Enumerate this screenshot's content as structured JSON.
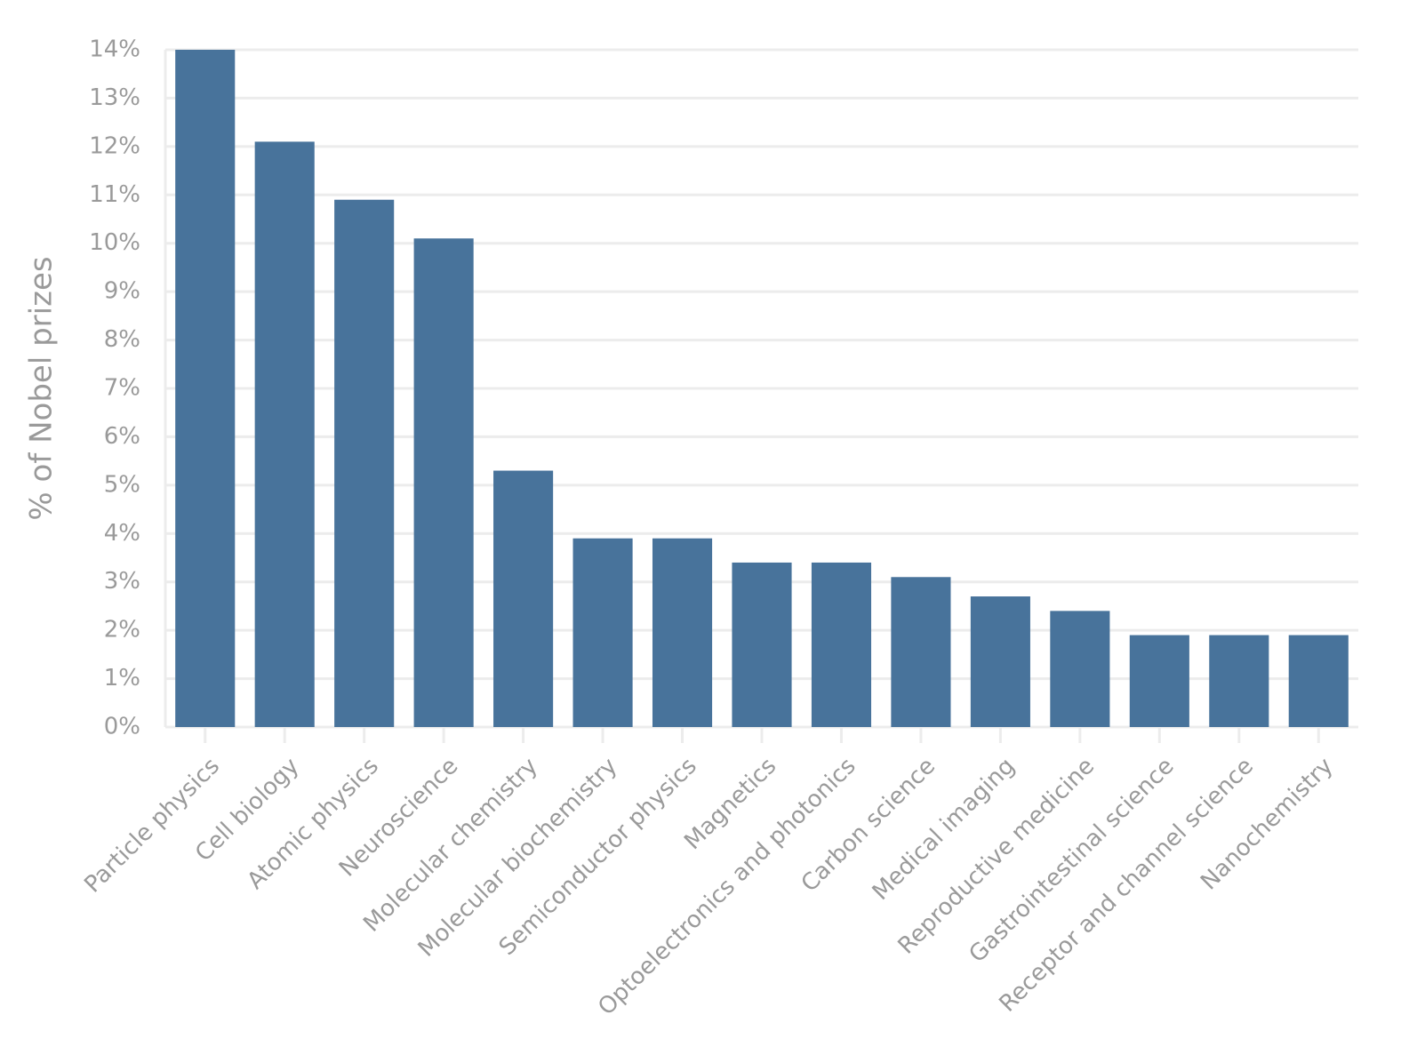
{
  "chart_data": {
    "type": "bar",
    "y_label": "% of Nobel prizes",
    "categories": [
      "Particle physics",
      "Cell biology",
      "Atomic physics",
      "Neuroscience",
      "Molecular chemistry",
      "Molecular biochemistry",
      "Semiconductor physics",
      "Magnetics",
      "Optoelectronics and photonics",
      "Carbon science",
      "Medical imaging",
      "Reproductive medicine",
      "Gastrointestinal science",
      "Receptor and channel science",
      "Nanochemistry"
    ],
    "values": [
      14,
      12.1,
      10.9,
      10.1,
      5.3,
      3.9,
      3.9,
      3.4,
      3.4,
      3.1,
      2.7,
      2.4,
      1.9,
      1.9,
      1.9
    ],
    "color": "#48739b",
    "ylim": [
      0,
      14
    ],
    "yticks": [
      {
        "value": 0,
        "label": "0%"
      },
      {
        "value": 1,
        "label": "1%"
      },
      {
        "value": 2,
        "label": "2%"
      },
      {
        "value": 3,
        "label": "3%"
      },
      {
        "value": 4,
        "label": "4%"
      },
      {
        "value": 5,
        "label": "5%"
      },
      {
        "value": 6,
        "label": "6%"
      },
      {
        "value": 7,
        "label": "7%"
      },
      {
        "value": 8,
        "label": "8%"
      },
      {
        "value": 9,
        "label": "9%"
      },
      {
        "value": 10,
        "label": "10%"
      },
      {
        "value": 11,
        "label": "11%"
      },
      {
        "value": 12,
        "label": "12%"
      },
      {
        "value": 13,
        "label": "13%"
      },
      {
        "value": 14,
        "label": "14%"
      }
    ],
    "grid": true
  }
}
